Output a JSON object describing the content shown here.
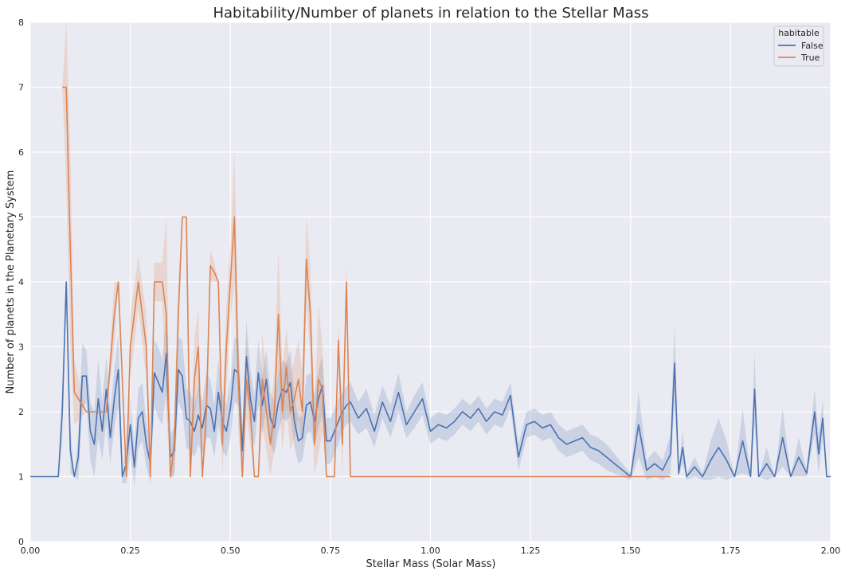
{
  "chart_data": {
    "type": "line",
    "title": "Habitability/Number of planets in relation to the Stellar Mass",
    "xlabel": "Stellar Mass (Solar Mass)",
    "ylabel": "Number of planets in the Planetary System",
    "xlim": [
      0,
      2.0
    ],
    "ylim": [
      0,
      8
    ],
    "xticks": [
      "0.00",
      "0.25",
      "0.50",
      "0.75",
      "1.00",
      "1.25",
      "1.50",
      "1.75",
      "2.00"
    ],
    "yticks": [
      "0",
      "1",
      "2",
      "3",
      "4",
      "5",
      "6",
      "7",
      "8"
    ],
    "grid": true,
    "background_color": "#eaeaf2",
    "legend": {
      "title": "habitable",
      "placement": "top-right"
    },
    "series": [
      {
        "name": "False",
        "color": "#4c72b0",
        "x": [
          0.0,
          0.07,
          0.08,
          0.09,
          0.1,
          0.11,
          0.12,
          0.13,
          0.14,
          0.15,
          0.16,
          0.17,
          0.18,
          0.19,
          0.2,
          0.21,
          0.22,
          0.23,
          0.24,
          0.25,
          0.26,
          0.27,
          0.28,
          0.29,
          0.3,
          0.31,
          0.32,
          0.33,
          0.34,
          0.35,
          0.36,
          0.37,
          0.38,
          0.39,
          0.4,
          0.41,
          0.42,
          0.43,
          0.44,
          0.45,
          0.46,
          0.47,
          0.48,
          0.49,
          0.5,
          0.51,
          0.52,
          0.53,
          0.54,
          0.55,
          0.56,
          0.57,
          0.58,
          0.59,
          0.6,
          0.61,
          0.62,
          0.63,
          0.64,
          0.65,
          0.66,
          0.67,
          0.68,
          0.69,
          0.7,
          0.71,
          0.72,
          0.73,
          0.74,
          0.75,
          0.76,
          0.77,
          0.78,
          0.79,
          0.8,
          0.82,
          0.84,
          0.86,
          0.88,
          0.9,
          0.92,
          0.94,
          0.96,
          0.98,
          1.0,
          1.02,
          1.04,
          1.06,
          1.08,
          1.1,
          1.12,
          1.14,
          1.16,
          1.18,
          1.2,
          1.22,
          1.24,
          1.26,
          1.28,
          1.3,
          1.32,
          1.34,
          1.36,
          1.38,
          1.4,
          1.42,
          1.44,
          1.46,
          1.48,
          1.5,
          1.52,
          1.54,
          1.56,
          1.58,
          1.6,
          1.61,
          1.62,
          1.63,
          1.64,
          1.66,
          1.68,
          1.7,
          1.72,
          1.74,
          1.76,
          1.78,
          1.8,
          1.81,
          1.82,
          1.84,
          1.86,
          1.88,
          1.9,
          1.92,
          1.94,
          1.96,
          1.97,
          1.98,
          1.99,
          2.0
        ],
        "y": [
          1.0,
          1.0,
          2.0,
          4.0,
          1.4,
          1.0,
          1.3,
          2.55,
          2.55,
          1.7,
          1.5,
          2.2,
          1.7,
          2.35,
          1.6,
          2.2,
          2.65,
          1.0,
          1.2,
          1.8,
          1.15,
          1.9,
          2.0,
          1.5,
          1.2,
          2.6,
          2.45,
          2.3,
          2.9,
          1.3,
          1.4,
          2.65,
          2.55,
          1.9,
          1.85,
          1.7,
          1.95,
          1.75,
          2.1,
          2.05,
          1.7,
          2.3,
          1.85,
          1.7,
          2.05,
          2.65,
          2.6,
          1.4,
          2.85,
          2.2,
          1.85,
          2.6,
          2.1,
          2.5,
          1.9,
          1.75,
          2.15,
          2.35,
          2.3,
          2.45,
          1.85,
          1.55,
          1.6,
          2.1,
          2.15,
          1.85,
          2.2,
          2.4,
          1.55,
          1.55,
          1.7,
          1.85,
          2.0,
          2.1,
          2.15,
          1.9,
          2.05,
          1.7,
          2.15,
          1.85,
          2.3,
          1.8,
          2.0,
          2.2,
          1.7,
          1.8,
          1.75,
          1.85,
          2.0,
          1.9,
          2.05,
          1.85,
          2.0,
          1.95,
          2.25,
          1.3,
          1.8,
          1.85,
          1.75,
          1.8,
          1.6,
          1.5,
          1.55,
          1.6,
          1.45,
          1.4,
          1.3,
          1.2,
          1.1,
          1.0,
          1.8,
          1.1,
          1.2,
          1.1,
          1.35,
          2.75,
          1.05,
          1.45,
          1.0,
          1.15,
          1.0,
          1.25,
          1.45,
          1.25,
          1.0,
          1.55,
          1.0,
          2.35,
          1.0,
          1.2,
          1.0,
          1.6,
          1.0,
          1.3,
          1.05,
          2.0,
          1.35,
          1.9,
          1.0,
          1.0
        ],
        "ci_halfwidth": [
          0.0,
          0.0,
          0.45,
          0.0,
          0.35,
          0.0,
          0.35,
          0.5,
          0.4,
          0.45,
          0.5,
          0.6,
          0.45,
          0.5,
          0.4,
          0.45,
          0.55,
          0.1,
          0.3,
          0.45,
          0.3,
          0.45,
          0.45,
          0.35,
          0.3,
          0.5,
          0.55,
          0.5,
          0.6,
          0.35,
          0.35,
          0.5,
          0.55,
          0.45,
          0.45,
          0.4,
          0.45,
          0.4,
          0.5,
          0.45,
          0.4,
          0.5,
          0.45,
          0.4,
          0.45,
          0.5,
          0.5,
          0.4,
          0.55,
          0.45,
          0.4,
          0.5,
          0.45,
          0.45,
          0.4,
          0.4,
          0.45,
          0.45,
          0.45,
          0.5,
          0.4,
          0.35,
          0.35,
          0.45,
          0.45,
          0.4,
          0.45,
          0.45,
          0.35,
          0.35,
          0.35,
          0.35,
          0.3,
          0.3,
          0.3,
          0.25,
          0.3,
          0.25,
          0.25,
          0.25,
          0.3,
          0.2,
          0.25,
          0.25,
          0.2,
          0.2,
          0.2,
          0.2,
          0.2,
          0.2,
          0.2,
          0.2,
          0.2,
          0.2,
          0.2,
          0.2,
          0.2,
          0.2,
          0.2,
          0.2,
          0.2,
          0.2,
          0.2,
          0.2,
          0.2,
          0.2,
          0.2,
          0.15,
          0.1,
          0.05,
          0.5,
          0.15,
          0.2,
          0.15,
          0.3,
          0.6,
          0.05,
          0.25,
          0.05,
          0.15,
          0.05,
          0.3,
          0.45,
          0.3,
          0.0,
          0.5,
          0.0,
          0.55,
          0.0,
          0.25,
          0.0,
          0.45,
          0.0,
          0.3,
          0.05,
          0.35,
          0.3,
          0.3,
          0.0,
          0.0
        ]
      },
      {
        "name": "True",
        "color": "#dd8452",
        "x": [
          0.08,
          0.09,
          0.1,
          0.11,
          0.14,
          0.15,
          0.16,
          0.17,
          0.18,
          0.19,
          0.21,
          0.22,
          0.24,
          0.25,
          0.27,
          0.29,
          0.3,
          0.31,
          0.33,
          0.34,
          0.35,
          0.36,
          0.37,
          0.38,
          0.39,
          0.4,
          0.41,
          0.42,
          0.43,
          0.44,
          0.45,
          0.46,
          0.47,
          0.48,
          0.49,
          0.5,
          0.51,
          0.52,
          0.53,
          0.54,
          0.55,
          0.56,
          0.57,
          0.58,
          0.59,
          0.6,
          0.61,
          0.62,
          0.63,
          0.64,
          0.65,
          0.66,
          0.67,
          0.68,
          0.69,
          0.7,
          0.71,
          0.72,
          0.73,
          0.74,
          0.75,
          0.76,
          0.77,
          0.78,
          0.79,
          0.8,
          1.6
        ],
        "y": [
          7.0,
          7.0,
          4.5,
          2.3,
          2.0,
          2.0,
          2.0,
          2.0,
          2.0,
          2.0,
          3.5,
          4.0,
          1.0,
          3.0,
          4.0,
          3.0,
          1.0,
          4.0,
          4.0,
          3.5,
          1.0,
          1.5,
          3.5,
          5.0,
          5.0,
          1.0,
          2.5,
          3.0,
          1.0,
          2.0,
          4.25,
          4.15,
          4.0,
          1.5,
          3.0,
          4.0,
          5.0,
          2.5,
          1.0,
          2.5,
          2.0,
          1.0,
          1.0,
          2.5,
          2.0,
          1.5,
          2.0,
          3.5,
          2.0,
          2.7,
          2.0,
          2.2,
          2.5,
          2.0,
          4.35,
          3.5,
          1.5,
          2.5,
          2.35,
          1.0,
          1.0,
          1.0,
          3.1,
          1.5,
          4.0,
          1.0,
          1.0
        ],
        "ci_halfwidth": [
          0.0,
          1.5,
          1.5,
          0.5,
          0.0,
          0.0,
          0.0,
          0.0,
          0.0,
          0.0,
          0.5,
          0.0,
          0.0,
          0.5,
          0.4,
          0.5,
          0.0,
          0.3,
          0.3,
          1.5,
          0.0,
          0.5,
          0.5,
          0.0,
          0.0,
          0.0,
          0.6,
          0.6,
          0.0,
          0.5,
          0.25,
          0.15,
          0.0,
          0.5,
          0.6,
          0.6,
          1.0,
          0.8,
          0.0,
          0.6,
          0.5,
          0.0,
          0.0,
          0.7,
          0.6,
          0.5,
          0.6,
          1.0,
          0.6,
          0.6,
          0.6,
          0.6,
          0.6,
          0.6,
          0.65,
          0.7,
          0.5,
          1.15,
          0.65,
          0.0,
          0.0,
          0.0,
          0.3,
          0.5,
          0.3,
          0.0,
          0.0
        ]
      }
    ]
  }
}
